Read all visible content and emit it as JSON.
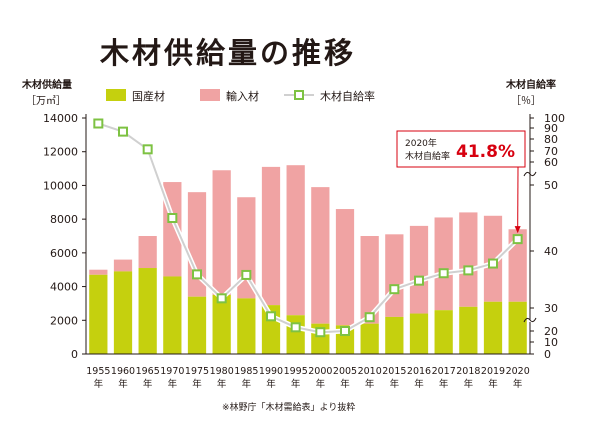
{
  "title": "木材供給量の推移",
  "left_axis": {
    "title": "木材供給量",
    "unit": "［万㎥］"
  },
  "right_axis": {
    "title": "木材自給率",
    "unit": "［％］"
  },
  "legend": {
    "domestic": "国産材",
    "imported": "輸入材",
    "rate": "木材自給率"
  },
  "callout": {
    "line1": "2020年",
    "line2": "木材自給率",
    "value": "41.8%"
  },
  "source": "※林野庁「木材需給表」より抜粋",
  "colors": {
    "domestic": "#c5d00e",
    "imported": "#f0a3a3",
    "rate_line": "#d0d0d0",
    "rate_marker": "#7dc242",
    "callout": "#d7000f",
    "axis": "#231815"
  },
  "chart_data": {
    "type": "bar",
    "stacked": true,
    "categories": [
      "1955年",
      "1960年",
      "1965年",
      "1970年",
      "1975年",
      "1980年",
      "1985年",
      "1990年",
      "1995年",
      "2000年",
      "2005年",
      "2010年",
      "2015年",
      "2016年",
      "2017年",
      "2018年",
      "2019年",
      "2020年"
    ],
    "series": [
      {
        "name": "国産材",
        "values": [
          4700,
          4900,
          5100,
          4600,
          3400,
          3500,
          3300,
          2900,
          2300,
          1800,
          1700,
          1800,
          2200,
          2400,
          2600,
          2800,
          3100,
          3100
        ]
      },
      {
        "name": "輸入材",
        "values": [
          300,
          700,
          1900,
          5600,
          6200,
          7400,
          6000,
          8200,
          8900,
          8100,
          6900,
          5200,
          4900,
          5200,
          5500,
          5600,
          5100,
          4300
        ]
      }
    ],
    "rate_series": {
      "name": "木材自給率",
      "values": [
        94.5,
        86.7,
        71.4,
        45.0,
        35.9,
        31.7,
        35.8,
        26.4,
        21.6,
        18.9,
        20.0,
        26.0,
        33.3,
        34.8,
        36.1,
        36.6,
        37.8,
        41.8
      ]
    },
    "ylim": [
      0,
      14000
    ],
    "yticks": [
      "0",
      "2000",
      "4000",
      "6000",
      "8000",
      "10000",
      "12000",
      "14000"
    ],
    "right_ylim": [
      0,
      100
    ],
    "right_yticks": [
      "0",
      "10",
      "20",
      "30",
      "40",
      "50",
      "60",
      "70",
      "80",
      "90",
      "100"
    ],
    "right_axis_break": [
      53,
      57
    ],
    "grid": false
  }
}
